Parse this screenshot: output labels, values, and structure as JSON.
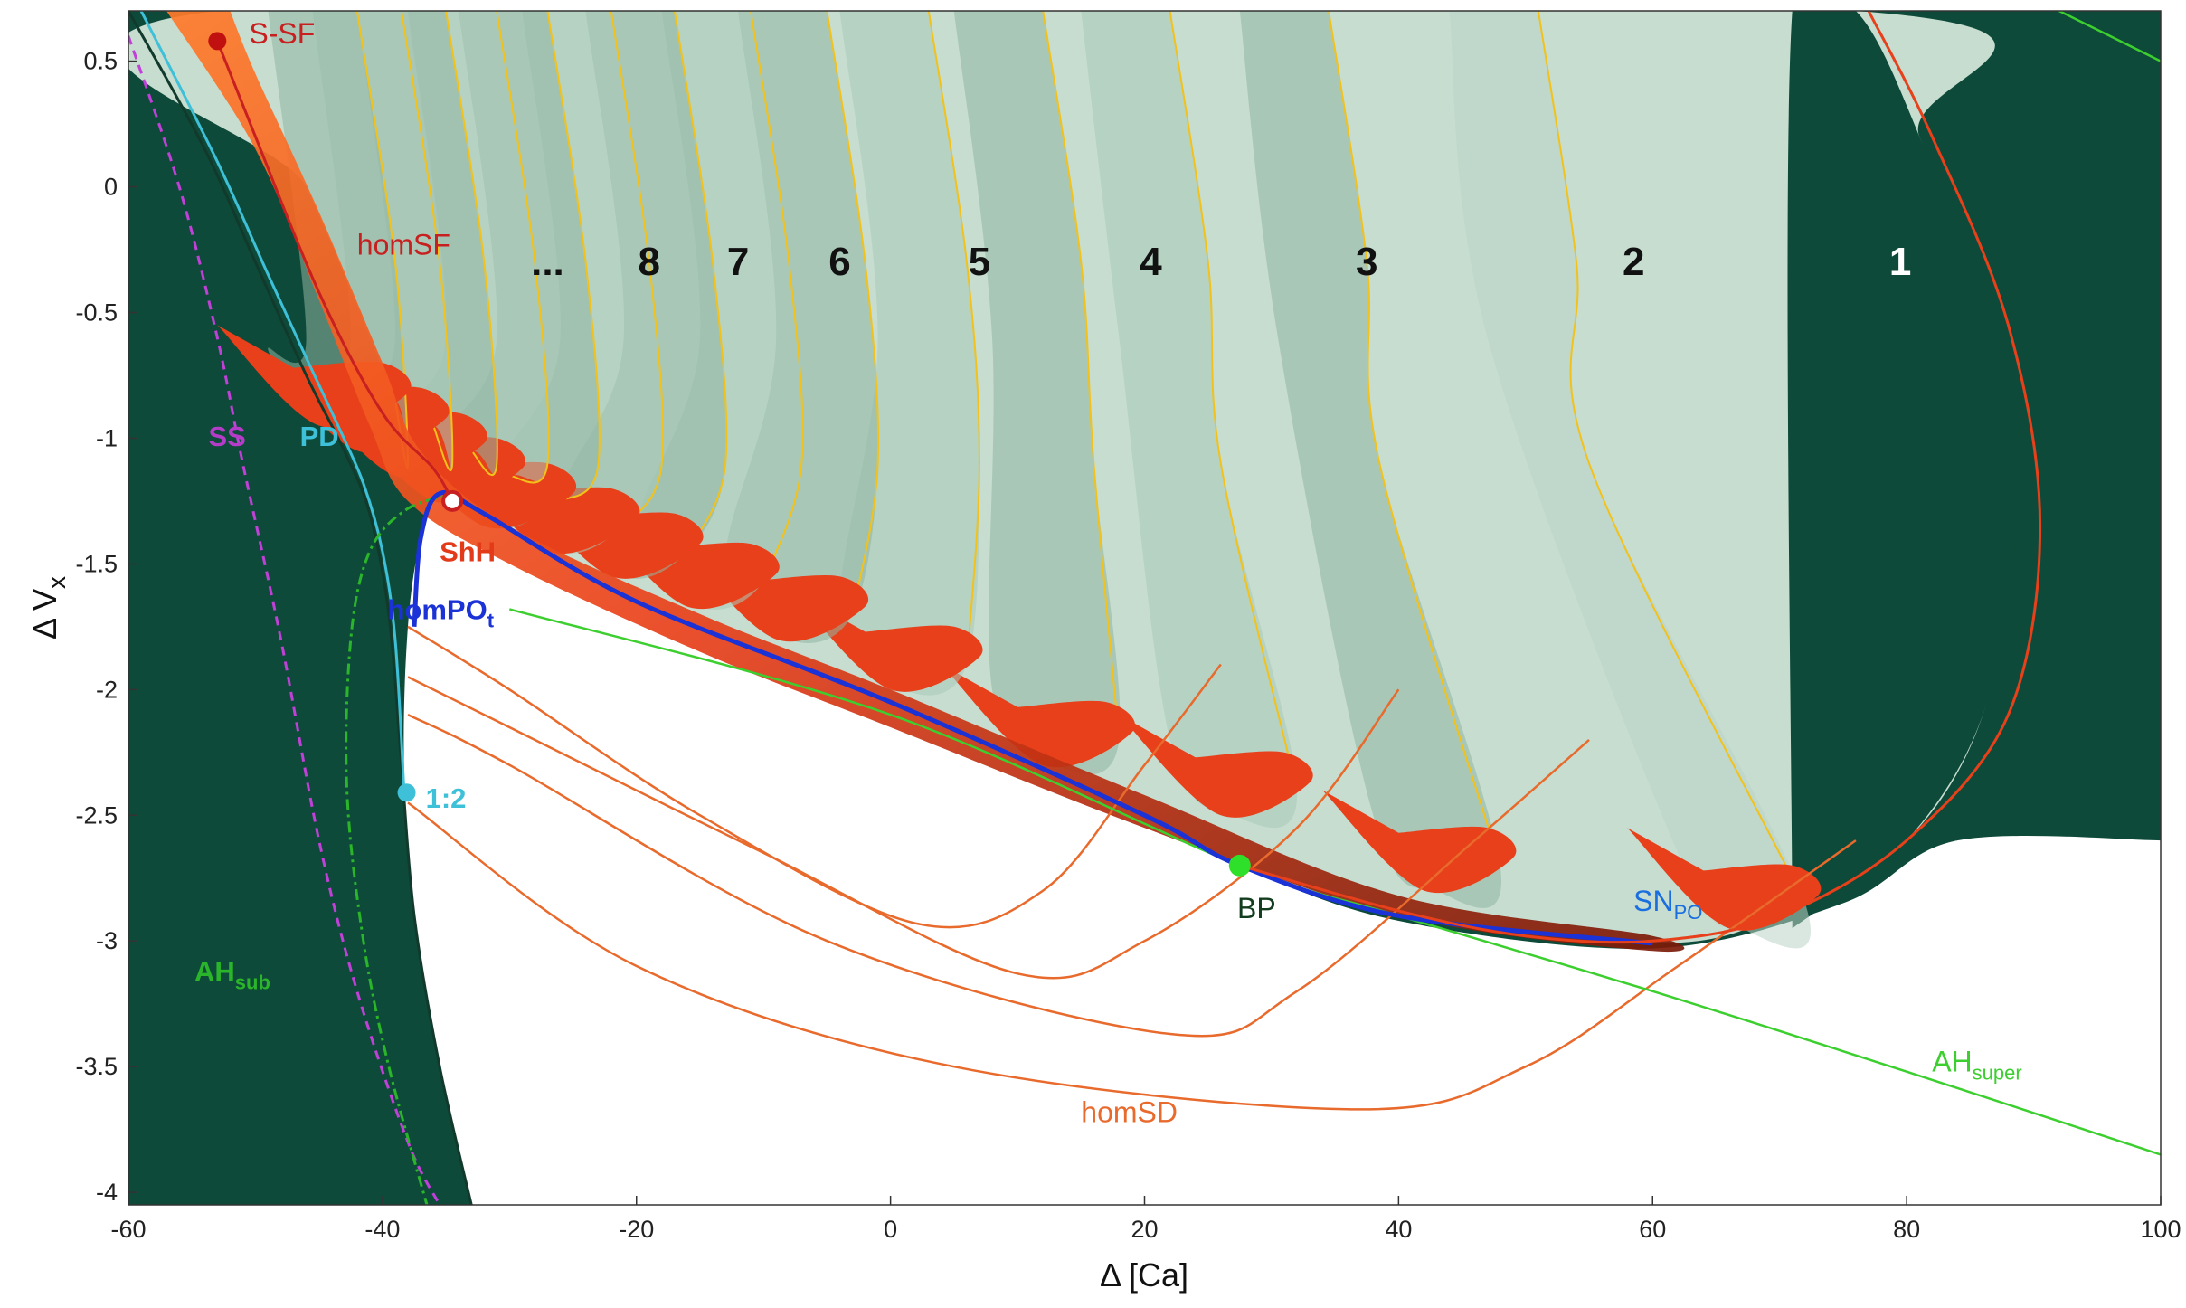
{
  "chart_data": {
    "type": "heatmap",
    "title": "",
    "xlabel": "Δ [Ca]",
    "ylabel_main": "Δ V",
    "ylabel_sub": "x",
    "xlim": [
      -60,
      100
    ],
    "ylim": [
      -4.05,
      0.7
    ],
    "x_ticks": [
      -60,
      -40,
      -20,
      0,
      20,
      40,
      60,
      80,
      100
    ],
    "y_ticks": [
      0.5,
      0,
      -0.5,
      -1,
      -1.5,
      -2,
      -2.5,
      -3,
      -3.5,
      -4
    ],
    "x_tick_labels": [
      "-60",
      "-40",
      "-20",
      "0",
      "20",
      "40",
      "60",
      "80",
      "100"
    ],
    "y_tick_labels": [
      "0.5",
      "0",
      "-0.5",
      "-1",
      "-1.5",
      "-2",
      "-2.5",
      "-3",
      "-3.5",
      "-4"
    ],
    "colors": {
      "dark_region": "#0e4a39",
      "spike_region_light": "#c6ddd0",
      "spike_region_dark": "#7fa896",
      "chaos": "#e8401a",
      "blue": "#1a32d6",
      "AH_super": "#3ccf2f",
      "AH_sub": "#2bb52a",
      "SS": "#c040d8",
      "PD": "#3ec0d8",
      "homSD": "#e86a2c",
      "homSF": "#c82020"
    },
    "region_labels": [
      {
        "text": "1",
        "x": 79.5,
        "y": -0.35,
        "color": "#ffffff"
      },
      {
        "text": "2",
        "x": 58.5,
        "y": -0.35,
        "color": "#111111"
      },
      {
        "text": "3",
        "x": 37.5,
        "y": -0.35,
        "color": "#111111"
      },
      {
        "text": "4",
        "x": 20.5,
        "y": -0.35,
        "color": "#111111"
      },
      {
        "text": "5",
        "x": 7.0,
        "y": -0.35,
        "color": "#111111"
      },
      {
        "text": "6",
        "x": -4.0,
        "y": -0.35,
        "color": "#111111"
      },
      {
        "text": "7",
        "x": -12.0,
        "y": -0.35,
        "color": "#111111"
      },
      {
        "text": "8",
        "x": -19.0,
        "y": -0.35,
        "color": "#111111"
      },
      {
        "text": "...",
        "x": -27.0,
        "y": -0.35,
        "color": "#111111"
      }
    ],
    "annotations": [
      {
        "id": "S-SF",
        "text": "S-SF",
        "x": -50.5,
        "y": 0.57,
        "color": "#c82020"
      },
      {
        "id": "homSF",
        "text": "homSF",
        "x": -42.0,
        "y": -0.27,
        "color": "#c82020"
      },
      {
        "id": "SS",
        "text": "SS",
        "x": -53.7,
        "y": -1.03,
        "color": "#b43cc8"
      },
      {
        "id": "PD",
        "text": "PD",
        "x": -46.5,
        "y": -1.03,
        "color": "#3ec0d8"
      },
      {
        "id": "ShH",
        "text": "ShH",
        "x": -35.5,
        "y": -1.49,
        "color": "#e33a1a"
      },
      {
        "id": "homPO",
        "text": "homPO",
        "sub": "t",
        "x": -39.6,
        "y": -1.72,
        "color": "#1a32d6"
      },
      {
        "id": "1:2",
        "text": "1:2",
        "x": -36.6,
        "y": -2.47,
        "color": "#3ec0d8"
      },
      {
        "id": "BP",
        "text": "BP",
        "x": 27.3,
        "y": -2.91,
        "color": "#133d1f"
      },
      {
        "id": "SNPO",
        "text": "SN",
        "sub": "PO",
        "x": 58.5,
        "y": -2.88,
        "color": "#1a6ee0"
      },
      {
        "id": "AHsub",
        "text": "AH",
        "sub": "sub",
        "x": -54.8,
        "y": -3.16,
        "color": "#2bb52a"
      },
      {
        "id": "AHsuper",
        "text": "AH",
        "sub": "super",
        "x": 82.0,
        "y": -3.52,
        "color": "#3ccf2f"
      },
      {
        "id": "homSD",
        "text": "homSD",
        "x": 15.0,
        "y": -3.72,
        "color": "#e86a2c"
      }
    ],
    "points": [
      {
        "id": "S-SF",
        "x": -53.0,
        "y": 0.58,
        "color": "#c01010"
      },
      {
        "id": "ShH",
        "x": -34.5,
        "y": -1.25,
        "color": "#ffffff",
        "stroke": "#c82020"
      },
      {
        "id": "1:2",
        "x": -38.1,
        "y": -2.41,
        "color": "#3ec0d8"
      },
      {
        "id": "BP",
        "x": 27.5,
        "y": -2.7,
        "color": "#2ee02a"
      }
    ],
    "curves": {
      "left_boundary": [
        [
          -60,
          0.7
        ],
        [
          -54,
          0.15
        ],
        [
          -50,
          -0.3
        ],
        [
          -46,
          -0.75
        ],
        [
          -43,
          -1.05
        ],
        [
          -41,
          -1.3
        ],
        [
          -39.5,
          -1.7
        ],
        [
          -38.5,
          -2.3
        ],
        [
          -37.5,
          -2.9
        ],
        [
          -35.5,
          -3.5
        ],
        [
          -33,
          -4.05
        ]
      ],
      "PD": [
        [
          -59,
          0.7
        ],
        [
          -53,
          0.1
        ],
        [
          -49,
          -0.35
        ],
        [
          -46,
          -0.68
        ],
        [
          -43.5,
          -0.95
        ],
        [
          -41.5,
          -1.18
        ],
        [
          -40,
          -1.45
        ],
        [
          -39,
          -1.8
        ],
        [
          -38.3,
          -2.4
        ]
      ],
      "SS": [
        [
          -60,
          0.6
        ],
        [
          -56,
          0.0
        ],
        [
          -53,
          -0.6
        ],
        [
          -51,
          -1.1
        ],
        [
          -48,
          -1.8
        ],
        [
          -45,
          -2.6
        ],
        [
          -42,
          -3.2
        ],
        [
          -38,
          -3.8
        ],
        [
          -35.5,
          -4.05
        ]
      ],
      "AH_sub": [
        [
          -34,
          -1.22
        ],
        [
          -38,
          -1.28
        ],
        [
          -41,
          -1.45
        ],
        [
          -42.5,
          -1.8
        ],
        [
          -42.8,
          -2.4
        ],
        [
          -41.5,
          -3.0
        ],
        [
          -39.5,
          -3.5
        ],
        [
          -36.5,
          -4.05
        ]
      ],
      "AH_super": [
        [
          -30,
          -1.68
        ],
        [
          0,
          -2.1
        ],
        [
          27.5,
          -2.7
        ],
        [
          40,
          -2.9
        ],
        [
          60,
          -3.2
        ],
        [
          80,
          -3.52
        ],
        [
          100,
          -3.85
        ]
      ],
      "SN_PO": [
        [
          27.5,
          -2.7
        ],
        [
          40,
          -2.88
        ],
        [
          50,
          -2.98
        ],
        [
          60,
          -3.0
        ],
        [
          70,
          -2.9
        ],
        [
          80,
          -2.6
        ],
        [
          88,
          -2.1
        ],
        [
          90.5,
          -1.35
        ],
        [
          88,
          -0.55
        ],
        [
          82,
          0.2
        ],
        [
          77,
          0.7
        ]
      ],
      "homPO_t": [
        [
          -37.5,
          -1.75
        ],
        [
          -37,
          -1.4
        ],
        [
          -35.5,
          -1.22
        ],
        [
          -32,
          -1.3
        ],
        [
          -20,
          -1.65
        ],
        [
          0,
          -2.05
        ],
        [
          20,
          -2.5
        ],
        [
          27.5,
          -2.7
        ],
        [
          40,
          -2.9
        ],
        [
          60,
          -3.01
        ]
      ],
      "homSF": [
        [
          -53,
          0.58
        ],
        [
          -50,
          0.2
        ],
        [
          -45,
          -0.42
        ],
        [
          -40,
          -0.9
        ],
        [
          -36,
          -1.12
        ],
        [
          -34.5,
          -1.25
        ]
      ],
      "homSD": [
        [
          [
            -38,
            -1.75
          ],
          [
            -30,
            -2.0
          ],
          [
            -15,
            -2.5
          ],
          [
            2,
            -2.93
          ],
          [
            12,
            -2.8
          ],
          [
            20,
            -2.3
          ],
          [
            26,
            -1.9
          ]
        ],
        [
          [
            -38,
            -1.95
          ],
          [
            -30,
            -2.15
          ],
          [
            -10,
            -2.65
          ],
          [
            10,
            -3.13
          ],
          [
            20,
            -3.0
          ],
          [
            32,
            -2.55
          ],
          [
            40,
            -2.0
          ]
        ],
        [
          [
            -38,
            -2.1
          ],
          [
            -30,
            -2.3
          ],
          [
            -5,
            -3.0
          ],
          [
            22,
            -3.37
          ],
          [
            32,
            -3.2
          ],
          [
            46,
            -2.6
          ],
          [
            55,
            -2.2
          ]
        ],
        [
          [
            -38,
            -2.45
          ],
          [
            -20,
            -3.1
          ],
          [
            5,
            -3.5
          ],
          [
            37,
            -3.67
          ],
          [
            50,
            -3.5
          ],
          [
            62,
            -3.1
          ],
          [
            76,
            -2.6
          ]
        ]
      ]
    }
  }
}
